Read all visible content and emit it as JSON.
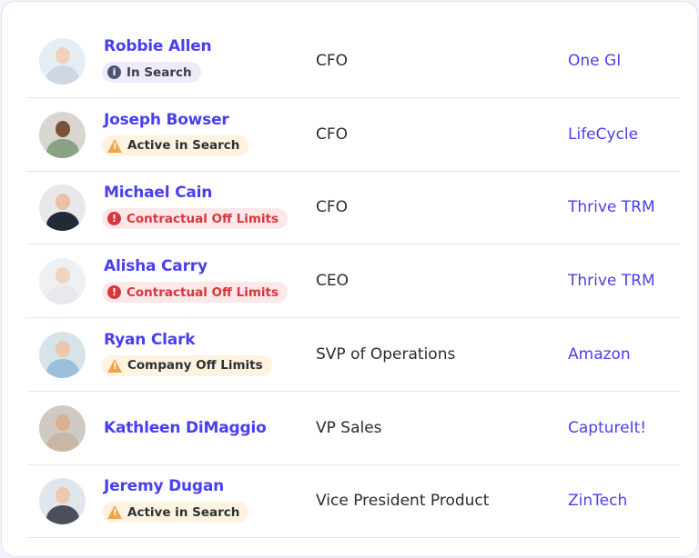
{
  "colors": {
    "link": "#4a3ff0",
    "info": "#4d5475",
    "warning": "#f5a347",
    "danger": "#d8363c"
  },
  "people": [
    {
      "name": "Robbie Allen",
      "badge": {
        "label": "In Search",
        "type": "info",
        "icon": "info-icon"
      },
      "title": "CFO",
      "company": "One GI"
    },
    {
      "name": "Joseph Bowser",
      "badge": {
        "label": "Active in Search",
        "type": "warning",
        "icon": "warning-icon"
      },
      "title": "CFO",
      "company": "LifeCycle"
    },
    {
      "name": "Michael Cain",
      "badge": {
        "label": "Contractual Off Limits",
        "type": "danger",
        "icon": "alert-icon"
      },
      "title": "CFO",
      "company": "Thrive TRM"
    },
    {
      "name": "Alisha Carry",
      "badge": {
        "label": "Contractual Off Limits",
        "type": "danger",
        "icon": "alert-icon"
      },
      "title": "CEO",
      "company": "Thrive TRM"
    },
    {
      "name": "Ryan Clark",
      "badge": {
        "label": "Company Off Limits",
        "type": "warning",
        "icon": "warning-icon"
      },
      "title": "SVP of Operations",
      "company": "Amazon"
    },
    {
      "name": "Kathleen DiMaggio",
      "badge": null,
      "title": "VP Sales",
      "company": "CaptureIt!"
    },
    {
      "name": "Jeremy Dugan",
      "badge": {
        "label": "Active in Search",
        "type": "warning",
        "icon": "warning-icon"
      },
      "title": "Vice President Product",
      "company": "ZinTech"
    }
  ]
}
